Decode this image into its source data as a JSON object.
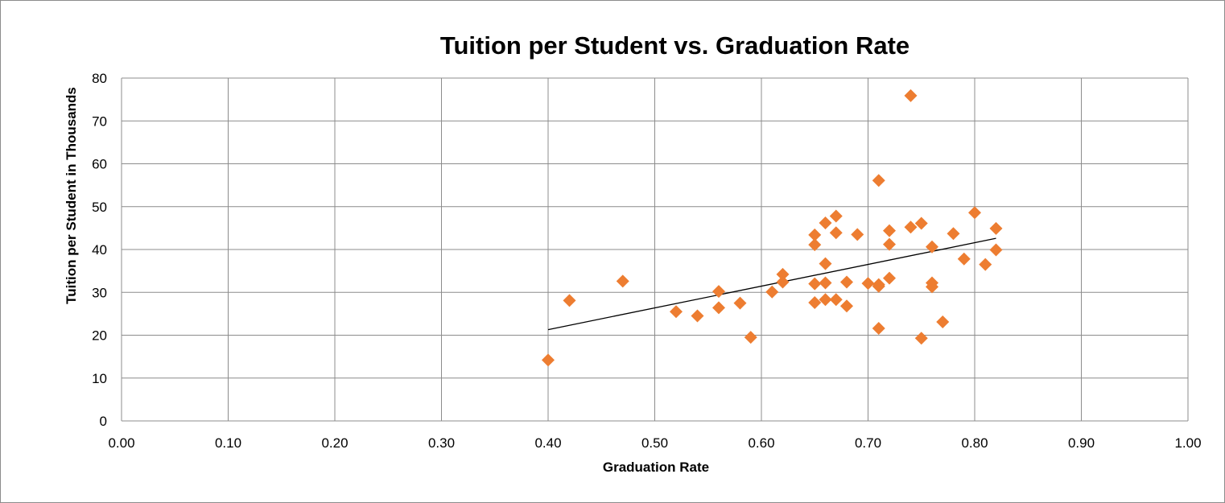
{
  "chart_data": {
    "type": "scatter",
    "title": "Tuition per Student vs. Graduation Rate",
    "xlabel": "Graduation Rate",
    "ylabel": "Tuition per Student in Thousands",
    "xlim": [
      0,
      1
    ],
    "ylim": [
      0,
      80
    ],
    "x_ticks": [
      "0.00",
      "0.10",
      "0.20",
      "0.30",
      "0.40",
      "0.50",
      "0.60",
      "0.70",
      "0.80",
      "0.90",
      "1.00"
    ],
    "y_ticks": [
      "0",
      "10",
      "20",
      "30",
      "40",
      "50",
      "60",
      "70",
      "80"
    ],
    "grid": true,
    "legend": "none",
    "marker": "diamond",
    "marker_color": "#ed7d31",
    "trendline": {
      "type": "linear",
      "color": "#000000",
      "points": [
        [
          0.4,
          21.3
        ],
        [
          0.82,
          42.6
        ]
      ]
    },
    "points": [
      [
        0.4,
        14.2
      ],
      [
        0.42,
        28.1
      ],
      [
        0.47,
        32.6
      ],
      [
        0.52,
        25.5
      ],
      [
        0.54,
        24.5
      ],
      [
        0.56,
        30.2
      ],
      [
        0.56,
        26.4
      ],
      [
        0.58,
        27.5
      ],
      [
        0.59,
        19.5
      ],
      [
        0.61,
        30.1
      ],
      [
        0.62,
        32.4
      ],
      [
        0.62,
        34.2
      ],
      [
        0.65,
        43.4
      ],
      [
        0.65,
        32.0
      ],
      [
        0.65,
        27.6
      ],
      [
        0.65,
        41.1
      ],
      [
        0.66,
        28.3
      ],
      [
        0.66,
        32.2
      ],
      [
        0.66,
        36.7
      ],
      [
        0.66,
        46.2
      ],
      [
        0.67,
        28.3
      ],
      [
        0.67,
        43.9
      ],
      [
        0.67,
        47.8
      ],
      [
        0.68,
        32.4
      ],
      [
        0.68,
        26.8
      ],
      [
        0.69,
        43.5
      ],
      [
        0.7,
        32.1
      ],
      [
        0.71,
        21.6
      ],
      [
        0.71,
        31.4
      ],
      [
        0.71,
        31.8
      ],
      [
        0.71,
        56.1
      ],
      [
        0.72,
        41.2
      ],
      [
        0.72,
        33.3
      ],
      [
        0.72,
        44.4
      ],
      [
        0.74,
        75.9
      ],
      [
        0.74,
        45.2
      ],
      [
        0.75,
        46.1
      ],
      [
        0.75,
        19.3
      ],
      [
        0.76,
        32.2
      ],
      [
        0.76,
        31.3
      ],
      [
        0.76,
        40.6
      ],
      [
        0.77,
        23.1
      ],
      [
        0.78,
        43.7
      ],
      [
        0.79,
        37.8
      ],
      [
        0.8,
        48.6
      ],
      [
        0.81,
        36.5
      ],
      [
        0.82,
        39.9
      ],
      [
        0.82,
        44.9
      ]
    ]
  }
}
